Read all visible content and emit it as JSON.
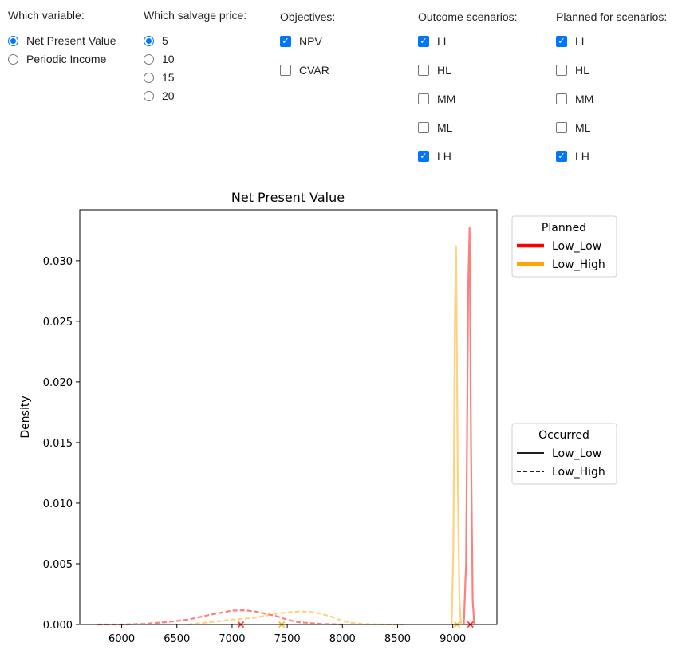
{
  "controls": {
    "variable": {
      "title": "Which variable:",
      "options": [
        "Net Present Value",
        "Periodic Income"
      ],
      "selected": 0
    },
    "salvage": {
      "title": "Which salvage price:",
      "options": [
        "5",
        "10",
        "15",
        "20"
      ],
      "selected": 0
    },
    "objectives": {
      "title": "Objectives:",
      "options": [
        {
          "label": "NPV",
          "checked": true
        },
        {
          "label": "CVAR",
          "checked": false
        }
      ]
    },
    "outcome": {
      "title": "Outcome scenarios:",
      "options": [
        {
          "label": "LL",
          "checked": true
        },
        {
          "label": "HL",
          "checked": false
        },
        {
          "label": "MM",
          "checked": false
        },
        {
          "label": "ML",
          "checked": false
        },
        {
          "label": "LH",
          "checked": true
        }
      ]
    },
    "planned": {
      "title": "Planned for scenarios:",
      "options": [
        {
          "label": "LL",
          "checked": true
        },
        {
          "label": "HL",
          "checked": false
        },
        {
          "label": "MM",
          "checked": false
        },
        {
          "label": "ML",
          "checked": false
        },
        {
          "label": "LH",
          "checked": true
        }
      ]
    }
  },
  "colors": {
    "accent": "#0075ff",
    "low_low": "#ff0000",
    "low_high": "#ffa500"
  },
  "chart_data": {
    "type": "line",
    "title": "Net Present Value",
    "xlabel": "",
    "ylabel": "Density",
    "xlim": [
      5620,
      9400
    ],
    "ylim": [
      0,
      0.0342
    ],
    "xticks": [
      6000,
      6500,
      7000,
      7500,
      8000,
      8500,
      9000
    ],
    "yticks": [
      0.0,
      0.005,
      0.01,
      0.015,
      0.02,
      0.025,
      0.03
    ],
    "ytick_labels": [
      "0.000",
      "0.005",
      "0.010",
      "0.015",
      "0.020",
      "0.025",
      "0.030"
    ],
    "legend_planned": {
      "title": "Planned",
      "entries": [
        "Low_Low",
        "Low_High"
      ],
      "placement": "upper right outside"
    },
    "legend_occurred": {
      "title": "Occurred",
      "entries": [
        "Low_Low",
        "Low_High"
      ],
      "placement": "center right outside"
    },
    "series": [
      {
        "name": "Low_Low",
        "planned": "Low_Low",
        "occurred": "Low_Low",
        "style": "solid",
        "x": [
          9100,
          9120,
          9140,
          9152,
          9165,
          9180,
          9195
        ],
        "y": [
          0.0,
          0.005,
          0.028,
          0.0327,
          0.015,
          0.002,
          0.0
        ]
      },
      {
        "name": "Low_High",
        "planned": "Low_High",
        "occurred": "Low_Low",
        "style": "solid",
        "x": [
          8990,
          9005,
          9020,
          9030,
          9045,
          9060,
          9075
        ],
        "y": [
          0.0,
          0.006,
          0.026,
          0.0312,
          0.012,
          0.002,
          0.0
        ]
      },
      {
        "name": "Low_Low",
        "planned": "Low_Low",
        "occurred": "Low_High",
        "style": "dashed",
        "x": [
          5780,
          6000,
          6200,
          6400,
          6600,
          6800,
          7000,
          7100,
          7200,
          7400,
          7500,
          7600,
          7800,
          8000
        ],
        "y": [
          0.0,
          0.0,
          5e-05,
          0.0002,
          0.0004,
          0.0008,
          0.00115,
          0.00118,
          0.0011,
          0.0007,
          0.0004,
          0.0002,
          5e-05,
          0.0
        ]
      },
      {
        "name": "Low_High",
        "planned": "Low_High",
        "occurred": "Low_High",
        "style": "dashed",
        "x": [
          6600,
          6800,
          7000,
          7200,
          7400,
          7600,
          7700,
          7800,
          7900,
          8000,
          8100,
          8200,
          8400,
          8560
        ],
        "y": [
          0.0,
          0.0002,
          0.0004,
          0.00055,
          0.0009,
          0.00108,
          0.00105,
          0.0009,
          0.00065,
          0.0003,
          0.00012,
          3e-05,
          0.0,
          0.0
        ]
      }
    ],
    "markers": [
      {
        "x": 7080,
        "y": 0.0,
        "series": "Low_Low"
      },
      {
        "x": 7450,
        "y": 0.0,
        "series": "Low_High"
      },
      {
        "x": 9040,
        "y": 0.0,
        "series": "Low_High"
      },
      {
        "x": 9160,
        "y": 0.0,
        "series": "Low_Low"
      }
    ]
  }
}
